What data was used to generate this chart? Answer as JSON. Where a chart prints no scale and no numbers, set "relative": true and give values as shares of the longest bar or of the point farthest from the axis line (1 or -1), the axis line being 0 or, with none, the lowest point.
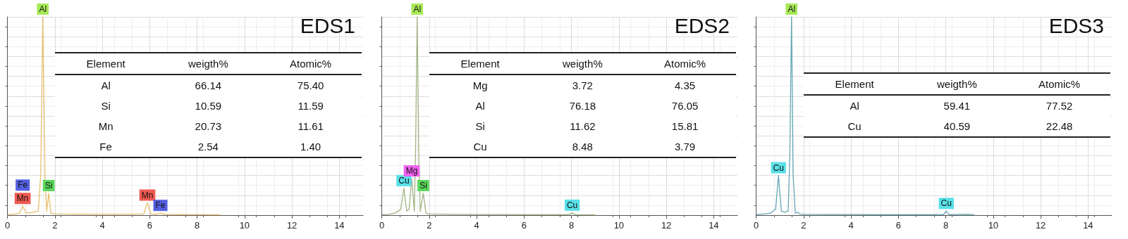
{
  "chart_data": [
    {
      "type": "line",
      "title": "EDS1",
      "relative": true,
      "grid": true,
      "xlim": [
        0,
        15
      ],
      "xticks": [
        0,
        2,
        4,
        6,
        8,
        10,
        12,
        14
      ],
      "color": "#e6bf6e",
      "x": [
        0,
        0.3,
        0.5,
        0.64,
        0.78,
        1.0,
        1.3,
        1.4,
        1.49,
        1.58,
        1.65,
        1.74,
        1.83,
        2.0,
        3,
        4,
        5,
        5.75,
        5.9,
        6.05,
        6.3,
        6.45,
        6.6,
        7,
        8,
        9
      ],
      "values": [
        0.003,
        0.005,
        0.01,
        0.045,
        0.012,
        0.012,
        0.02,
        0.2,
        1,
        0.2,
        0.02,
        0.11,
        0.01,
        0.006,
        0.005,
        0.004,
        0.004,
        0.006,
        0.062,
        0.006,
        0.004,
        0.01,
        0.003,
        0.003,
        0.002,
        0.001
      ],
      "annotations": [
        {
          "text": "Al",
          "x": 1.49,
          "y": 1
        },
        {
          "text": "Mn",
          "x": 0.64,
          "y": 0.045
        },
        {
          "text": "Fe",
          "x": 0.64,
          "y": 0.045
        },
        {
          "text": "Si",
          "x": 1.74,
          "y": 0.11
        },
        {
          "text": "Mn",
          "x": 5.9,
          "y": 0.062
        },
        {
          "text": "Fe",
          "x": 6.45,
          "y": 0.01
        },
        "Element",
        "weigth%",
        "Atomic%",
        "Al",
        "66.14",
        "75.40",
        "Si",
        "10.59",
        "11.59",
        "Mn",
        "20.73",
        "11.61",
        "Fe",
        "2.54",
        "1.40"
      ]
    },
    {
      "type": "line",
      "title": "EDS2",
      "relative": true,
      "grid": true,
      "xlim": [
        0,
        15
      ],
      "xticks": [
        0,
        2,
        4,
        6,
        8,
        10,
        12,
        14
      ],
      "color": "#a3b384",
      "x": [
        0,
        0.3,
        0.6,
        0.8,
        0.93,
        1.05,
        1.15,
        1.26,
        1.37,
        1.42,
        1.49,
        1.56,
        1.62,
        1.75,
        1.86,
        2.0,
        3,
        4,
        5,
        6,
        7,
        7.9,
        8.03,
        8.16,
        9
      ],
      "values": [
        0.002,
        0.004,
        0.012,
        0.03,
        0.135,
        0.02,
        0.03,
        0.184,
        0.02,
        0.3,
        1,
        0.3,
        0.02,
        0.11,
        0.01,
        0.006,
        0.004,
        0.003,
        0.003,
        0.002,
        0.002,
        0.002,
        0.011,
        0.002,
        0.001
      ],
      "annotations": [
        {
          "text": "Al",
          "x": 1.49,
          "y": 1
        },
        {
          "text": "Cu",
          "x": 0.93,
          "y": 0.135
        },
        {
          "text": "Mg",
          "x": 1.26,
          "y": 0.184
        },
        {
          "text": "Si",
          "x": 1.75,
          "y": 0.11
        },
        {
          "text": "Cu",
          "x": 8.03,
          "y": 0.011
        },
        "Element",
        "weigth%",
        "Atomic%",
        "Mg",
        "3.72",
        "4.35",
        "Al",
        "76.18",
        "76.05",
        "Si",
        "11.62",
        "15.81",
        "Cu",
        "8.48",
        "3.79"
      ]
    },
    {
      "type": "line",
      "title": "EDS3",
      "relative": true,
      "grid": true,
      "xlim": [
        0,
        15
      ],
      "xticks": [
        0,
        2,
        4,
        6,
        8,
        10,
        12,
        14
      ],
      "color": "#64a7b5",
      "x": [
        0,
        0.3,
        0.6,
        0.82,
        0.94,
        1.06,
        1.2,
        1.35,
        1.42,
        1.49,
        1.56,
        1.65,
        1.74,
        1.85,
        2.0,
        3,
        4,
        5,
        6,
        7,
        7.9,
        8.02,
        8.14,
        8.9,
        9.2
      ],
      "values": [
        0.003,
        0.005,
        0.01,
        0.03,
        0.2,
        0.02,
        0.015,
        0.02,
        0.3,
        1,
        0.2,
        0.01,
        0.015,
        0.005,
        0.004,
        0.003,
        0.003,
        0.002,
        0.002,
        0.002,
        0.002,
        0.02,
        0.002,
        0.004,
        0.001
      ],
      "annotations": [
        {
          "text": "Al",
          "x": 1.49,
          "y": 1
        },
        {
          "text": "Cu",
          "x": 0.94,
          "y": 0.2
        },
        {
          "text": "Cu",
          "x": 8.02,
          "y": 0.02
        },
        "Element",
        "weigth%",
        "Atomic%",
        "Al",
        "59.41",
        "77.52",
        "Cu",
        "40.59",
        "22.48"
      ]
    }
  ]
}
